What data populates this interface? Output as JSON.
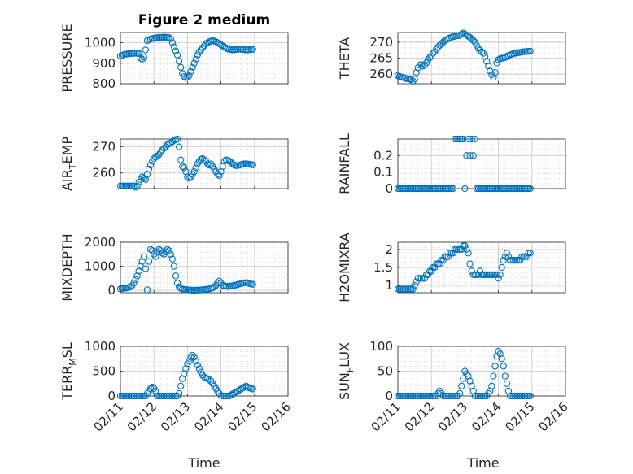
{
  "figure": {
    "title": "Figure 2 medium",
    "xlabel": "Time",
    "marker_color": "#0072BD"
  },
  "chart_data": [
    {
      "type": "scatter",
      "ylabel": "PRESSURE",
      "xlim": [
        0,
        5
      ],
      "ylim": [
        800,
        1050
      ],
      "yticks": [
        800,
        900,
        1000
      ],
      "xticklabels": [],
      "grid": true,
      "x": [
        0,
        0.05,
        0.1,
        0.15,
        0.2,
        0.25,
        0.3,
        0.35,
        0.4,
        0.45,
        0.5,
        0.55,
        0.6,
        0.65,
        0.7,
        0.75,
        0.8,
        0.85,
        0.9,
        0.95,
        1.0,
        1.05,
        1.1,
        1.15,
        1.2,
        1.25,
        1.3,
        1.35,
        1.4,
        1.45,
        1.5,
        1.55,
        1.6,
        1.65,
        1.7,
        1.75,
        1.8,
        1.85,
        1.9,
        1.95,
        2.0,
        2.05,
        2.1,
        2.15,
        2.2,
        2.25,
        2.3,
        2.35,
        2.4,
        2.45,
        2.5,
        2.55,
        2.6,
        2.65,
        2.7,
        2.75,
        2.8,
        2.85,
        2.9,
        2.95,
        3.0,
        3.05,
        3.1,
        3.15,
        3.2,
        3.25,
        3.3,
        3.35,
        3.4,
        3.45,
        3.5,
        3.55,
        3.6,
        3.65,
        3.7,
        3.75,
        3.8,
        3.85,
        3.9,
        3.95
      ],
      "y": [
        935,
        938,
        942,
        944,
        945,
        946,
        947,
        948,
        948,
        949,
        948,
        947,
        925,
        920,
        930,
        965,
        1010,
        1015,
        1018,
        1020,
        1022,
        1024,
        1025,
        1026,
        1026,
        1027,
        1027,
        1027,
        1026,
        1025,
        1020,
        1000,
        980,
        960,
        940,
        910,
        880,
        850,
        835,
        830,
        832,
        840,
        860,
        880,
        900,
        920,
        940,
        955,
        965,
        975,
        985,
        995,
        1000,
        1005,
        1008,
        1010,
        1008,
        1005,
        1000,
        995,
        990,
        985,
        980,
        975,
        970,
        968,
        966,
        965,
        966,
        967,
        968,
        969,
        968,
        967,
        966,
        965,
        965,
        966,
        967,
        968
      ]
    },
    {
      "type": "scatter",
      "ylabel": "THETA",
      "xlim": [
        0,
        5
      ],
      "ylim": [
        257,
        273
      ],
      "yticks": [
        260,
        265,
        270
      ],
      "xticklabels": [],
      "grid": true,
      "x": [
        0,
        0.05,
        0.1,
        0.15,
        0.2,
        0.25,
        0.3,
        0.35,
        0.4,
        0.45,
        0.5,
        0.55,
        0.6,
        0.65,
        0.7,
        0.75,
        0.8,
        0.85,
        0.9,
        0.95,
        1.0,
        1.05,
        1.1,
        1.15,
        1.2,
        1.25,
        1.3,
        1.35,
        1.4,
        1.45,
        1.5,
        1.55,
        1.6,
        1.65,
        1.7,
        1.75,
        1.8,
        1.85,
        1.9,
        1.95,
        2.0,
        2.05,
        2.1,
        2.15,
        2.2,
        2.25,
        2.3,
        2.35,
        2.4,
        2.45,
        2.5,
        2.55,
        2.6,
        2.65,
        2.7,
        2.75,
        2.8,
        2.85,
        2.9,
        2.95,
        3.0,
        3.05,
        3.1,
        3.15,
        3.2,
        3.25,
        3.3,
        3.35,
        3.4,
        3.45,
        3.5,
        3.55,
        3.6,
        3.65,
        3.7,
        3.75,
        3.8,
        3.85,
        3.9,
        3.95
      ],
      "y": [
        259.5,
        259.3,
        259.0,
        259.0,
        258.8,
        258.6,
        258.6,
        258.4,
        258.3,
        257.8,
        258.5,
        260.5,
        262.0,
        262.8,
        263.0,
        262.5,
        262.8,
        263.5,
        264.5,
        265.2,
        265.5,
        266.5,
        267.0,
        267.8,
        268.5,
        269.0,
        269.5,
        270.0,
        270.4,
        270.8,
        271.0,
        271.3,
        271.5,
        271.7,
        271.8,
        272.0,
        272.0,
        272.2,
        272.5,
        272.8,
        272.5,
        272.2,
        271.8,
        271.5,
        271.0,
        270.5,
        270.0,
        269.0,
        268.0,
        267.5,
        267.0,
        266.5,
        265.5,
        264.0,
        262.5,
        261.0,
        259.8,
        259.0,
        260.5,
        263.5,
        264.5,
        264.8,
        265.0,
        265.0,
        265.2,
        265.5,
        265.8,
        266.0,
        266.2,
        266.4,
        266.5,
        266.6,
        266.7,
        266.8,
        266.9,
        267.0,
        267.0,
        267.1,
        267.1,
        267.2
      ]
    },
    {
      "type": "scatter",
      "ylabel": "AIR",
      "ylabel_sub": "T",
      "ylabel_suffix": "EMP",
      "xlim": [
        0,
        5
      ],
      "ylim": [
        254,
        273
      ],
      "yticks": [
        260,
        270
      ],
      "xticklabels": [],
      "grid": true,
      "x": [
        0,
        0.05,
        0.1,
        0.15,
        0.2,
        0.25,
        0.3,
        0.35,
        0.4,
        0.45,
        0.5,
        0.55,
        0.6,
        0.65,
        0.7,
        0.75,
        0.8,
        0.85,
        0.9,
        0.95,
        1.0,
        1.05,
        1.1,
        1.15,
        1.2,
        1.25,
        1.3,
        1.35,
        1.4,
        1.45,
        1.5,
        1.55,
        1.6,
        1.65,
        1.7,
        1.75,
        1.8,
        1.85,
        1.9,
        1.95,
        2.0,
        2.05,
        2.1,
        2.15,
        2.2,
        2.25,
        2.3,
        2.35,
        2.4,
        2.45,
        2.5,
        2.55,
        2.6,
        2.65,
        2.7,
        2.75,
        2.8,
        2.85,
        2.9,
        2.95,
        3.0,
        3.05,
        3.1,
        3.15,
        3.2,
        3.25,
        3.3,
        3.35,
        3.4,
        3.45,
        3.5,
        3.55,
        3.6,
        3.65,
        3.7,
        3.75,
        3.8,
        3.85,
        3.9,
        3.95
      ],
      "y": [
        255,
        255,
        255,
        255,
        255,
        255,
        255,
        255,
        255,
        254.5,
        255,
        256.5,
        257.5,
        258.5,
        258.0,
        257.5,
        259.5,
        261.5,
        263.0,
        264.5,
        265.5,
        266.0,
        266.5,
        267.0,
        268.0,
        268.8,
        269.5,
        270.0,
        270.8,
        271.2,
        271.5,
        272.0,
        272.5,
        272.8,
        273.0,
        270.0,
        265.0,
        262.5,
        262.0,
        260.5,
        258.5,
        258.0,
        258.5,
        259.5,
        260.5,
        262.0,
        263.5,
        264.5,
        265.2,
        265.5,
        265.0,
        264.5,
        263.5,
        263.0,
        263.5,
        262.5,
        261.5,
        260.5,
        259.5,
        259.0,
        260.5,
        262.5,
        264.5,
        265.0,
        264.8,
        264.5,
        264.0,
        263.5,
        263.0,
        262.8,
        262.8,
        263.0,
        263.2,
        263.4,
        263.5,
        263.5,
        263.4,
        263.3,
        263.2,
        263.1
      ]
    },
    {
      "type": "scatter",
      "ylabel": "RAINFALL",
      "xlim": [
        0,
        5
      ],
      "ylim": [
        0,
        0.3
      ],
      "yticks": [
        0,
        0.1,
        0.2
      ],
      "xticklabels": [],
      "grid": true,
      "x": [
        0,
        0.05,
        0.1,
        0.15,
        0.2,
        0.25,
        0.3,
        0.35,
        0.4,
        0.45,
        0.5,
        0.55,
        0.6,
        0.65,
        0.7,
        0.75,
        0.8,
        0.85,
        0.9,
        0.95,
        1.0,
        1.05,
        1.1,
        1.15,
        1.2,
        1.25,
        1.3,
        1.35,
        1.4,
        1.45,
        1.5,
        1.55,
        1.6,
        1.65,
        1.7,
        1.75,
        1.8,
        1.85,
        1.9,
        1.95,
        2.0,
        2.05,
        2.1,
        2.15,
        2.2,
        2.25,
        2.3,
        2.35,
        2.4,
        2.45,
        2.5,
        2.55,
        2.6,
        2.65,
        2.7,
        2.75,
        2.8,
        2.85,
        2.9,
        2.95,
        3.0,
        3.05,
        3.1,
        3.15,
        3.2,
        3.25,
        3.3,
        3.35,
        3.4,
        3.45,
        3.5,
        3.55,
        3.6,
        3.65,
        3.7,
        3.75,
        3.8,
        3.85,
        3.9,
        3.95
      ],
      "y": [
        0,
        0,
        0,
        0,
        0,
        0,
        0,
        0,
        0,
        0,
        0,
        0,
        0,
        0,
        0,
        0,
        0,
        0,
        0,
        0,
        0,
        0,
        0,
        0,
        0,
        0,
        0,
        0,
        0,
        0,
        0,
        0,
        0,
        0,
        0.3,
        0.3,
        0.3,
        0.3,
        0.3,
        0.3,
        0,
        0.2,
        0.3,
        0.2,
        0.3,
        0.2,
        0.3,
        0,
        0,
        0,
        0,
        0,
        0,
        0,
        0,
        0,
        0,
        0,
        0,
        0,
        0,
        0,
        0,
        0,
        0,
        0,
        0,
        0,
        0,
        0,
        0,
        0,
        0,
        0,
        0,
        0,
        0,
        0,
        0,
        0
      ]
    },
    {
      "type": "scatter",
      "ylabel": "MIXDEPTH",
      "xlim": [
        0,
        5
      ],
      "ylim": [
        -100,
        2000
      ],
      "yticks": [
        0,
        1000,
        2000
      ],
      "xticklabels": [],
      "grid": true,
      "x": [
        0,
        0.05,
        0.1,
        0.15,
        0.2,
        0.25,
        0.3,
        0.35,
        0.4,
        0.45,
        0.5,
        0.55,
        0.6,
        0.65,
        0.7,
        0.75,
        0.8,
        0.85,
        0.9,
        0.95,
        1.0,
        1.05,
        1.1,
        1.15,
        1.2,
        1.25,
        1.3,
        1.35,
        1.4,
        1.45,
        1.5,
        1.55,
        1.6,
        1.65,
        1.7,
        1.75,
        1.8,
        1.85,
        1.9,
        1.95,
        2.0,
        2.05,
        2.1,
        2.15,
        2.2,
        2.25,
        2.3,
        2.35,
        2.4,
        2.45,
        2.5,
        2.55,
        2.6,
        2.65,
        2.7,
        2.75,
        2.8,
        2.85,
        2.9,
        2.95,
        3.0,
        3.05,
        3.1,
        3.15,
        3.2,
        3.25,
        3.3,
        3.35,
        3.4,
        3.45,
        3.5,
        3.55,
        3.6,
        3.65,
        3.7,
        3.75,
        3.8,
        3.85,
        3.9,
        3.95
      ],
      "y": [
        60,
        70,
        80,
        90,
        100,
        120,
        150,
        200,
        300,
        450,
        600,
        800,
        1000,
        1200,
        1400,
        900,
        20,
        1200,
        1700,
        1650,
        1500,
        1400,
        1600,
        1700,
        1650,
        1550,
        1500,
        1600,
        1700,
        1650,
        1500,
        1300,
        1000,
        600,
        300,
        150,
        80,
        50,
        40,
        30,
        20,
        15,
        10,
        5,
        5,
        5,
        10,
        10,
        15,
        20,
        30,
        40,
        50,
        60,
        80,
        100,
        150,
        200,
        300,
        380,
        300,
        200,
        180,
        170,
        160,
        170,
        180,
        190,
        200,
        220,
        240,
        260,
        280,
        300,
        310,
        320,
        300,
        280,
        260,
        250
      ]
    },
    {
      "type": "scatter",
      "ylabel": "H2OMIXRA",
      "xlim": [
        0,
        5
      ],
      "ylim": [
        0.8,
        2.2
      ],
      "yticks": [
        1,
        1.5,
        2
      ],
      "xticklabels": [],
      "grid": true,
      "x": [
        0,
        0.05,
        0.1,
        0.15,
        0.2,
        0.25,
        0.3,
        0.35,
        0.4,
        0.45,
        0.5,
        0.55,
        0.6,
        0.65,
        0.7,
        0.75,
        0.8,
        0.85,
        0.9,
        0.95,
        1.0,
        1.05,
        1.1,
        1.15,
        1.2,
        1.25,
        1.3,
        1.35,
        1.4,
        1.45,
        1.5,
        1.55,
        1.6,
        1.65,
        1.7,
        1.75,
        1.8,
        1.85,
        1.9,
        1.95,
        2.0,
        2.05,
        2.1,
        2.15,
        2.2,
        2.25,
        2.3,
        2.35,
        2.4,
        2.45,
        2.5,
        2.55,
        2.6,
        2.65,
        2.7,
        2.75,
        2.8,
        2.85,
        2.9,
        2.95,
        3.0,
        3.05,
        3.1,
        3.15,
        3.2,
        3.25,
        3.3,
        3.35,
        3.4,
        3.45,
        3.5,
        3.55,
        3.6,
        3.65,
        3.7,
        3.75,
        3.8,
        3.85,
        3.9,
        3.95
      ],
      "y": [
        0.9,
        0.9,
        0.9,
        0.9,
        0.9,
        0.9,
        0.9,
        0.9,
        0.9,
        0.9,
        1.0,
        1.1,
        1.2,
        1.2,
        1.2,
        1.2,
        1.2,
        1.3,
        1.3,
        1.4,
        1.4,
        1.5,
        1.5,
        1.6,
        1.6,
        1.6,
        1.7,
        1.7,
        1.8,
        1.8,
        1.8,
        1.9,
        1.9,
        1.9,
        2.0,
        2.0,
        2.0,
        2.0,
        2.0,
        2.1,
        2.1,
        2.0,
        1.9,
        1.6,
        1.4,
        1.3,
        1.3,
        1.3,
        1.3,
        1.4,
        1.3,
        1.3,
        1.3,
        1.3,
        1.3,
        1.3,
        1.3,
        1.3,
        1.3,
        1.3,
        1.2,
        1.3,
        1.5,
        1.7,
        1.8,
        1.9,
        1.8,
        1.7,
        1.7,
        1.7,
        1.7,
        1.7,
        1.7,
        1.7,
        1.8,
        1.8,
        1.8,
        1.8,
        1.9,
        1.9
      ]
    },
    {
      "type": "scatter",
      "ylabel": "TERR",
      "ylabel_sub": "M",
      "ylabel_suffix": "SL",
      "xlim": [
        0,
        5
      ],
      "ylim": [
        0,
        1000
      ],
      "yticks": [
        0,
        500,
        1000
      ],
      "xticklabels": [
        "02/11",
        "02/12",
        "02/13",
        "02/14",
        "02/15",
        "02/16"
      ],
      "grid": true,
      "x": [
        0,
        0.05,
        0.1,
        0.15,
        0.2,
        0.25,
        0.3,
        0.35,
        0.4,
        0.45,
        0.5,
        0.55,
        0.6,
        0.65,
        0.7,
        0.75,
        0.8,
        0.85,
        0.9,
        0.95,
        1.0,
        1.05,
        1.1,
        1.15,
        1.2,
        1.25,
        1.3,
        1.35,
        1.4,
        1.45,
        1.5,
        1.55,
        1.6,
        1.65,
        1.7,
        1.75,
        1.8,
        1.85,
        1.9,
        1.95,
        2.0,
        2.05,
        2.1,
        2.15,
        2.2,
        2.25,
        2.3,
        2.35,
        2.4,
        2.45,
        2.5,
        2.55,
        2.6,
        2.65,
        2.7,
        2.75,
        2.8,
        2.85,
        2.9,
        2.95,
        3.0,
        3.05,
        3.1,
        3.15,
        3.2,
        3.25,
        3.3,
        3.35,
        3.4,
        3.45,
        3.5,
        3.55,
        3.6,
        3.65,
        3.7,
        3.75,
        3.8,
        3.85,
        3.9,
        3.95
      ],
      "y": [
        0,
        0,
        0,
        0,
        0,
        0,
        0,
        0,
        0,
        0,
        0,
        0,
        0,
        0,
        0,
        0,
        50,
        100,
        150,
        180,
        150,
        100,
        0,
        0,
        0,
        0,
        0,
        0,
        0,
        0,
        0,
        0,
        0,
        0,
        0,
        50,
        200,
        350,
        450,
        550,
        650,
        700,
        780,
        820,
        780,
        700,
        620,
        550,
        480,
        420,
        380,
        360,
        350,
        330,
        300,
        250,
        200,
        150,
        100,
        50,
        10,
        0,
        0,
        0,
        0,
        0,
        20,
        40,
        60,
        80,
        100,
        120,
        140,
        160,
        180,
        200,
        180,
        160,
        150,
        140
      ]
    },
    {
      "type": "scatter",
      "ylabel": "SUN",
      "ylabel_sub": "F",
      "ylabel_suffix": "LUX",
      "xlim": [
        0,
        5
      ],
      "ylim": [
        0,
        100
      ],
      "yticks": [
        0,
        50,
        100
      ],
      "xticklabels": [
        "02/11",
        "02/12",
        "02/13",
        "02/14",
        "02/15",
        "02/16"
      ],
      "grid": true,
      "x": [
        0,
        0.05,
        0.1,
        0.15,
        0.2,
        0.25,
        0.3,
        0.35,
        0.4,
        0.45,
        0.5,
        0.55,
        0.6,
        0.65,
        0.7,
        0.75,
        0.8,
        0.85,
        0.9,
        0.95,
        1.0,
        1.05,
        1.1,
        1.15,
        1.2,
        1.25,
        1.3,
        1.35,
        1.4,
        1.45,
        1.5,
        1.55,
        1.6,
        1.65,
        1.7,
        1.75,
        1.8,
        1.85,
        1.9,
        1.95,
        2.0,
        2.05,
        2.1,
        2.15,
        2.2,
        2.25,
        2.3,
        2.35,
        2.4,
        2.45,
        2.5,
        2.55,
        2.6,
        2.65,
        2.7,
        2.75,
        2.8,
        2.85,
        2.9,
        2.95,
        3.0,
        3.05,
        3.1,
        3.15,
        3.2,
        3.25,
        3.3,
        3.35,
        3.4,
        3.45,
        3.5,
        3.55,
        3.6,
        3.65,
        3.7,
        3.75,
        3.8,
        3.85,
        3.9,
        3.95
      ],
      "y": [
        0,
        0,
        0,
        0,
        0,
        0,
        0,
        0,
        0,
        0,
        0,
        0,
        0,
        0,
        0,
        0,
        0,
        0,
        0,
        0,
        0,
        0,
        0,
        0,
        5,
        10,
        5,
        0,
        0,
        0,
        0,
        0,
        0,
        0,
        0,
        0,
        0,
        5,
        20,
        35,
        50,
        45,
        40,
        30,
        20,
        10,
        0,
        0,
        0,
        0,
        0,
        0,
        0,
        0,
        5,
        10,
        20,
        40,
        60,
        80,
        90,
        85,
        75,
        60,
        40,
        25,
        10,
        0,
        0,
        0,
        0,
        0,
        0,
        0,
        0,
        0,
        0,
        0,
        0,
        0
      ]
    }
  ]
}
